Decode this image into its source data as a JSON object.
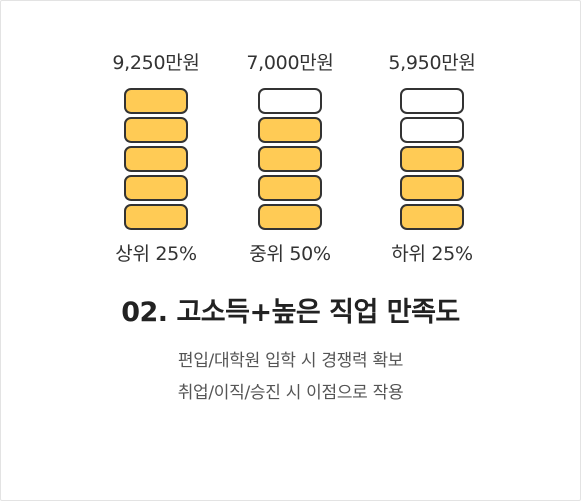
{
  "tiers": [
    {
      "salary": "9,250만원",
      "percent": "상위 25%",
      "filled_blocks": 5,
      "total_blocks": 5
    },
    {
      "salary": "7,000만원",
      "percent": "중위 50%",
      "filled_blocks": 4,
      "total_blocks": 5
    },
    {
      "salary": "5,950만원",
      "percent": "하위 25%",
      "filled_blocks": 3,
      "total_blocks": 5
    }
  ],
  "title": "02. 고소득+높은 직업 만족도",
  "description": {
    "line1": "편입/대학원 입학 시 경쟁력 확보",
    "line2": "취업/이직/승진 시 이점으로 작용"
  },
  "colors": {
    "fill": "#ffcb55",
    "outline": "#333333"
  }
}
